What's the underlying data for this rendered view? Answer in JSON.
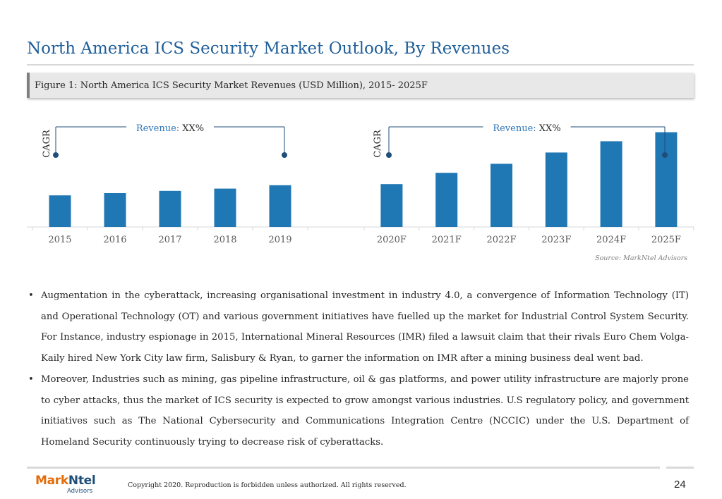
{
  "header": {
    "title": "North America ICS Security Market Outlook, By Revenues",
    "figure_caption": "Figure 1: North America ICS Security Market Revenues (USD Million), 2015- 2025F"
  },
  "chart_data": [
    {
      "type": "bar",
      "categories": [
        "2015",
        "2016",
        "2017",
        "2018",
        "2019"
      ],
      "values": [
        28,
        30,
        32,
        34,
        37
      ],
      "annotation": {
        "cagr_label": "CAGR",
        "revenue_label": "Revenue:",
        "revenue_value": "XX%"
      },
      "color": "#1f77b4"
    },
    {
      "type": "bar",
      "categories": [
        "2020F",
        "2021F",
        "2022F",
        "2023F",
        "2024F",
        "2025F"
      ],
      "values": [
        38,
        48,
        56,
        66,
        76,
        84
      ],
      "annotation": {
        "cagr_label": "CAGR",
        "revenue_label": "Revenue:",
        "revenue_value": "XX%"
      },
      "color": "#1f77b4"
    }
  ],
  "source": "Source: MarkNtel Advisors",
  "bullets": [
    "Augmentation in the cyberattack, increasing organisational investment in industry 4.0, a convergence of Information Technology (IT) and Operational Technology (OT) and various government initiatives have fuelled up the market for Industrial Control System Security. For Instance, industry espionage in 2015, International Mineral Resources (IMR) filed a lawsuit claim that their rivals Euro Chem Volga-Kaily hired New York City law firm, Salisbury & Ryan, to garner the information on IMR after a mining business deal went bad.",
    "Moreover, Industries such as mining, gas pipeline infrastructure, oil & gas platforms, and power utility infrastructure are majorly prone to cyber attacks, thus the market of ICS security is expected to grow amongst various industries. U.S regulatory policy, and government initiatives such as The National Cybersecurity and Communications Integration Centre (NCCIC) under the U.S. Department of Homeland Security continuously trying to decrease risk of cyberattacks."
  ],
  "footer": {
    "logo_mark": "Mark",
    "logo_ntel": "Ntel",
    "logo_sub": "Advisors",
    "copyright": "Copyright 2020. Reproduction is forbidden unless authorized. All rights reserved.",
    "page_number": "24"
  },
  "colors": {
    "title": "#1f5f9a",
    "bar": "#1f77b4",
    "annotation_line": "#1f4e79",
    "logo_orange": "#e36c0a",
    "logo_blue": "#1f4e79"
  }
}
